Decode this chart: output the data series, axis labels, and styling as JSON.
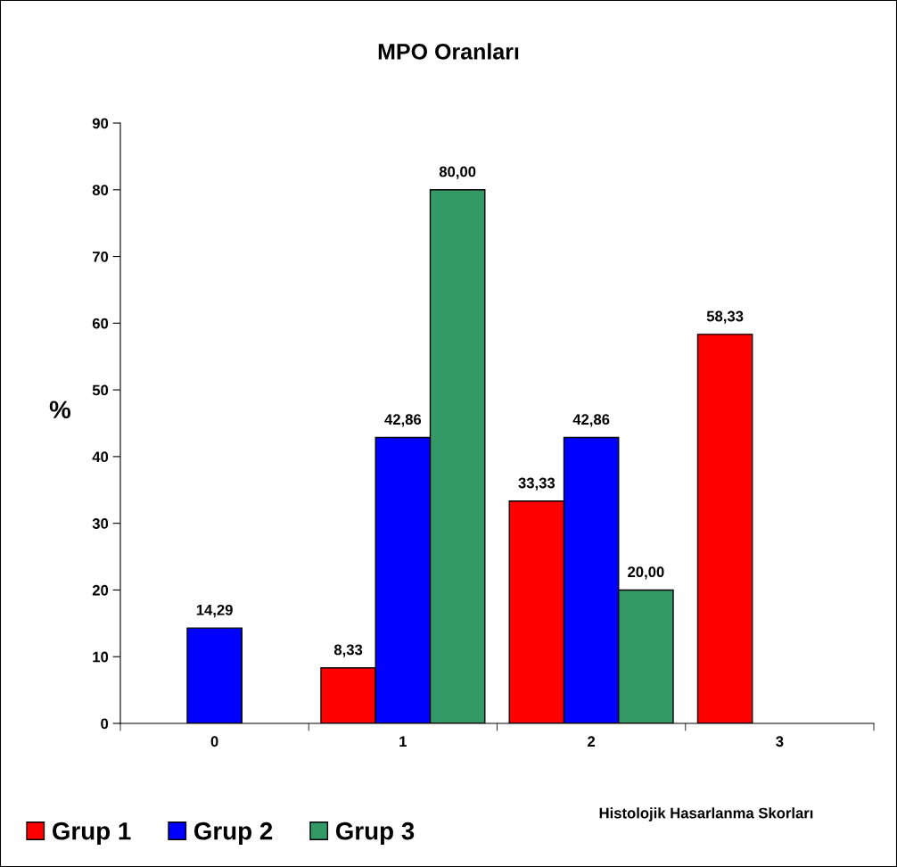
{
  "chart_data": {
    "type": "bar",
    "title": "MPO Oranları",
    "xlabel": "Histolojik Hasarlanma Skorları",
    "ylabel": "%",
    "categories": [
      "0",
      "1",
      "2",
      "3"
    ],
    "series": [
      {
        "name": "Grup 1",
        "color": "#ff0000",
        "values": [
          null,
          8.33,
          33.33,
          58.33
        ],
        "value_labels": [
          null,
          "8,33",
          "33,33",
          "58,33"
        ]
      },
      {
        "name": "Grup 2",
        "color": "#0000ff",
        "values": [
          14.29,
          42.86,
          42.86,
          null
        ],
        "value_labels": [
          "14,29",
          "42,86",
          "42,86",
          null
        ]
      },
      {
        "name": "Grup 3",
        "color": "#339966",
        "values": [
          null,
          80.0,
          20.0,
          null
        ],
        "value_labels": [
          null,
          "80,00",
          "20,00",
          null
        ]
      }
    ],
    "ylim": [
      0,
      90
    ],
    "yticks": [
      0,
      10,
      20,
      30,
      40,
      50,
      60,
      70,
      80,
      90
    ],
    "grid": false,
    "legend": "bottom left"
  }
}
